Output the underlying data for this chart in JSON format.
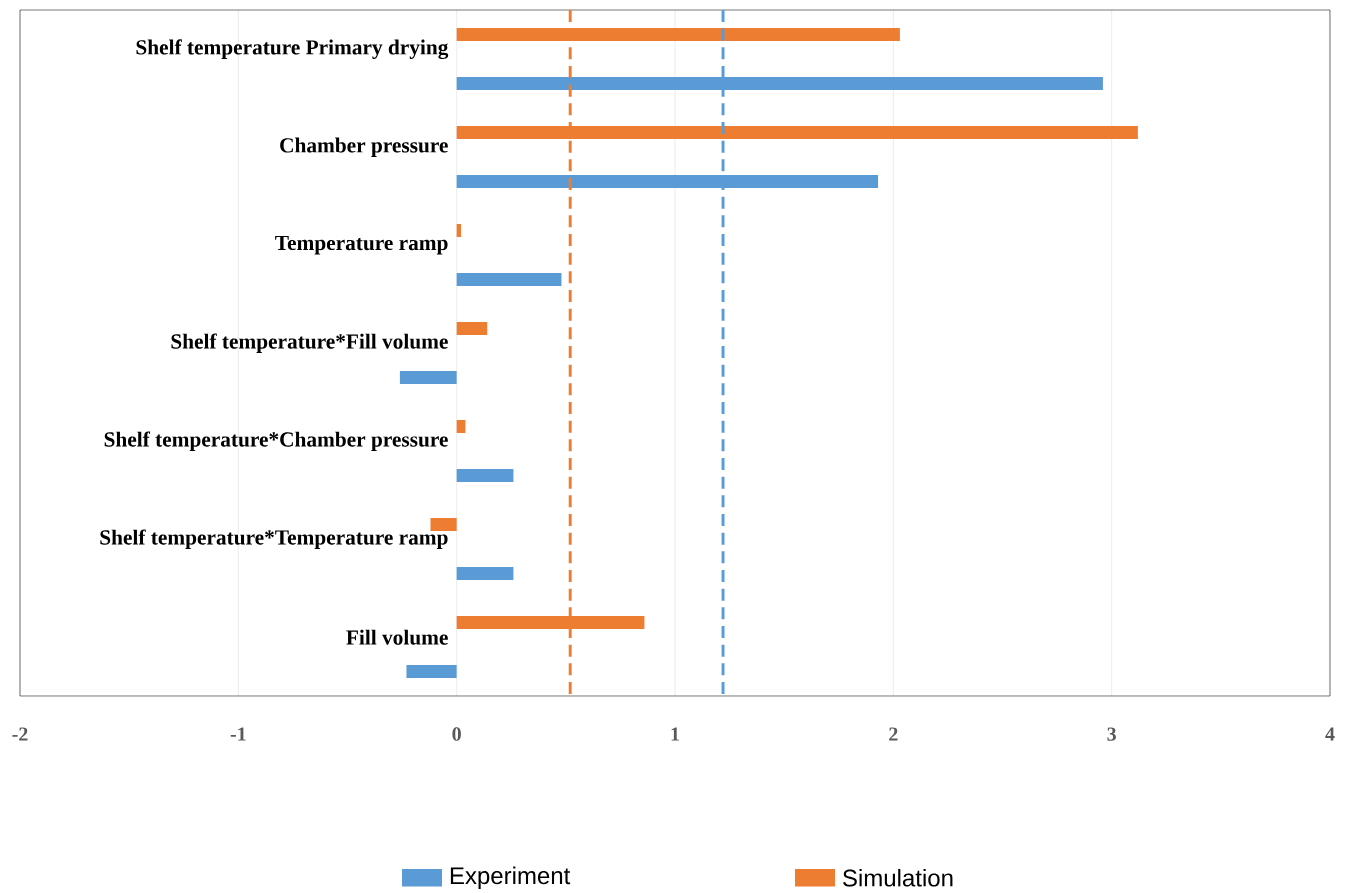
{
  "chart_data": {
    "type": "bar",
    "orientation": "horizontal",
    "categories": [
      "Shelf temperature Primary drying",
      "Chamber pressure",
      "Temperature ramp",
      "Shelf temperature*Fill volume",
      "Shelf temperature*Chamber pressure",
      "Shelf temperature*Temperature ramp",
      "Fill volume"
    ],
    "series": [
      {
        "name": "Experiment",
        "color": "#5b9bd5",
        "values": [
          2.96,
          1.93,
          0.48,
          -0.26,
          0.26,
          0.26,
          -0.23
        ]
      },
      {
        "name": "Simulation",
        "color": "#ed7d31",
        "values": [
          2.03,
          3.12,
          0.02,
          0.14,
          0.04,
          -0.12,
          0.86
        ]
      }
    ],
    "xlim": [
      -2,
      4
    ],
    "xticks": [
      -2,
      -1,
      0,
      1,
      2,
      3,
      4
    ],
    "ref_lines": [
      {
        "axis": "x",
        "value": 0.52,
        "color": "#ed7d31",
        "line_style": "dashed"
      },
      {
        "axis": "x",
        "value": 1.22,
        "color": "#5b9bd5",
        "line_style": "dashed"
      }
    ],
    "grid": "x",
    "legend": "bottom"
  }
}
